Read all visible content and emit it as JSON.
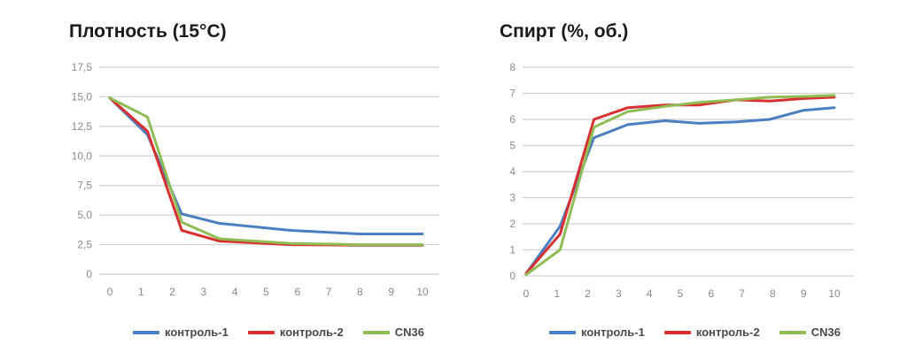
{
  "colors": {
    "series": [
      "#4a7fc1",
      "#d9302f",
      "#8fbd53"
    ]
  },
  "chart_data": [
    {
      "type": "line",
      "title": "Плотность (15°C)",
      "xlabel": "",
      "ylabel": "",
      "xlim": [
        0,
        10
      ],
      "ylim": [
        0,
        17.5
      ],
      "x_ticks": [
        "0",
        "1",
        "2",
        "3",
        "4",
        "5",
        "6",
        "7",
        "8",
        "9",
        "10"
      ],
      "y_ticks": [
        "0",
        "2,5",
        "5,0",
        "7,5",
        "10,0",
        "12,5",
        "15,0",
        "17,5"
      ],
      "y_tick_values": [
        0,
        2.5,
        5,
        7.5,
        10,
        12.5,
        15,
        17.5
      ],
      "grid": true,
      "legend_position": "bottom",
      "series": [
        {
          "name": "контроль-1",
          "x": [
            0,
            1.2,
            2.3,
            3.5,
            5.8,
            8,
            10
          ],
          "y": [
            14.9,
            11.8,
            5.1,
            4.3,
            3.7,
            3.4,
            3.4
          ]
        },
        {
          "name": "контроль-2",
          "x": [
            0,
            1.2,
            2.3,
            3.5,
            5.8,
            8,
            10
          ],
          "y": [
            14.9,
            12.1,
            3.7,
            2.8,
            2.5,
            2.45,
            2.45
          ]
        },
        {
          "name": "CN36",
          "x": [
            0,
            1.2,
            2.3,
            3.5,
            5.8,
            8,
            10
          ],
          "y": [
            14.9,
            13.3,
            4.4,
            3.0,
            2.6,
            2.5,
            2.5
          ]
        }
      ]
    },
    {
      "type": "line",
      "title": "Спирт (%, об.)",
      "xlabel": "",
      "ylabel": "",
      "xlim": [
        0,
        10
      ],
      "ylim": [
        0,
        8
      ],
      "x_ticks": [
        "0",
        "1",
        "2",
        "3",
        "4",
        "5",
        "6",
        "7",
        "8",
        "9",
        "10"
      ],
      "y_ticks": [
        "0",
        "1",
        "2",
        "3",
        "4",
        "5",
        "6",
        "7",
        "8"
      ],
      "y_tick_values": [
        0,
        1,
        2,
        3,
        4,
        5,
        6,
        7,
        8
      ],
      "grid": true,
      "legend_position": "bottom",
      "series": [
        {
          "name": "контроль-1",
          "x": [
            0,
            1.1,
            2.2,
            3.3,
            4.5,
            5.6,
            6.8,
            7.9,
            9,
            10
          ],
          "y": [
            0.1,
            1.9,
            5.3,
            5.8,
            5.95,
            5.85,
            5.9,
            6.0,
            6.35,
            6.45
          ]
        },
        {
          "name": "контроль-2",
          "x": [
            0,
            1.1,
            2.2,
            3.3,
            4.5,
            5.6,
            6.8,
            7.9,
            9,
            10
          ],
          "y": [
            0.1,
            1.6,
            6.0,
            6.45,
            6.55,
            6.55,
            6.75,
            6.7,
            6.8,
            6.85
          ]
        },
        {
          "name": "CN36",
          "x": [
            0,
            1.1,
            2.2,
            3.3,
            4.5,
            5.6,
            6.8,
            7.9,
            9,
            10
          ],
          "y": [
            0.05,
            1.0,
            5.7,
            6.3,
            6.5,
            6.65,
            6.75,
            6.85,
            6.88,
            6.92
          ]
        }
      ]
    }
  ]
}
